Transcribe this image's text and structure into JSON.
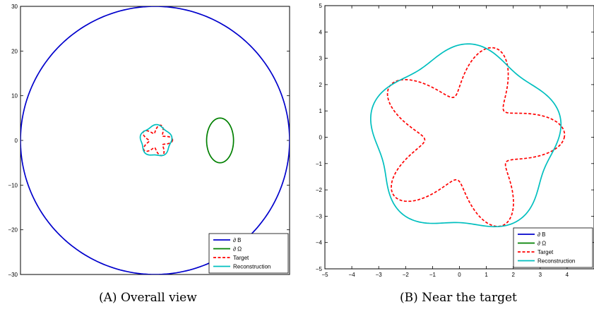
{
  "chart_data": [
    {
      "type": "line",
      "caption": "(A) Overall view",
      "xlim": [
        -30,
        30
      ],
      "ylim": [
        -30,
        30
      ],
      "y_ticks": [
        30,
        20,
        10,
        0,
        -10,
        -20,
        -30
      ],
      "x_ticks_labeled": false,
      "legend_position": "bottom-right",
      "series": [
        {
          "name": "∂ B",
          "color": "#0000cc",
          "style": "solid",
          "shape": {
            "kind": "circle",
            "center": [
              0,
              0
            ],
            "radius": 30
          }
        },
        {
          "name": "∂ Ω",
          "color": "#008000",
          "style": "solid",
          "shape": {
            "kind": "ellipse",
            "center": [
              14.5,
              0
            ],
            "rx": 3,
            "ry": 5
          }
        },
        {
          "name": "Target",
          "color": "#ff0000",
          "style": "dashed",
          "shape": {
            "kind": "star",
            "center": [
              0.36,
              -0.03
            ],
            "r0": 2.6,
            "amp": 0.95,
            "k": 5,
            "phase": 0.2
          }
        },
        {
          "name": "Reconstruction",
          "color": "#00bfbf",
          "style": "solid",
          "shape": {
            "kind": "star",
            "center": [
              0.2,
              -0.1
            ],
            "r0": 3.4,
            "amp": 0.25,
            "k": 5,
            "phase": 1.3
          }
        }
      ]
    },
    {
      "type": "line",
      "caption": "(B) Near the target",
      "xlim": [
        -5,
        5
      ],
      "ylim": [
        -5,
        5
      ],
      "x_ticks": [
        -5,
        -4,
        -3,
        -2,
        -1,
        0,
        1,
        2,
        3,
        4
      ],
      "y_ticks": [
        5,
        4,
        3,
        2,
        1,
        0,
        -1,
        -2,
        -3,
        -4,
        -5
      ],
      "legend_position": "bottom-right",
      "series": [
        {
          "name": "∂ B",
          "color": "#0000cc",
          "style": "solid"
        },
        {
          "name": "∂ Ω",
          "color": "#008000",
          "style": "solid"
        },
        {
          "name": "Target",
          "color": "#ff0000",
          "style": "dashed",
          "shape": {
            "kind": "star",
            "center": [
              0.36,
              -0.03
            ],
            "r0": 2.6,
            "amp": 0.95,
            "k": 5,
            "phase": 0.2
          }
        },
        {
          "name": "Reconstruction",
          "color": "#00bfbf",
          "style": "solid",
          "shape": {
            "kind": "star",
            "center": [
              0.2,
              -0.1
            ],
            "r0": 3.4,
            "amp": 0.25,
            "k": 5,
            "phase": 1.3
          }
        }
      ]
    }
  ]
}
